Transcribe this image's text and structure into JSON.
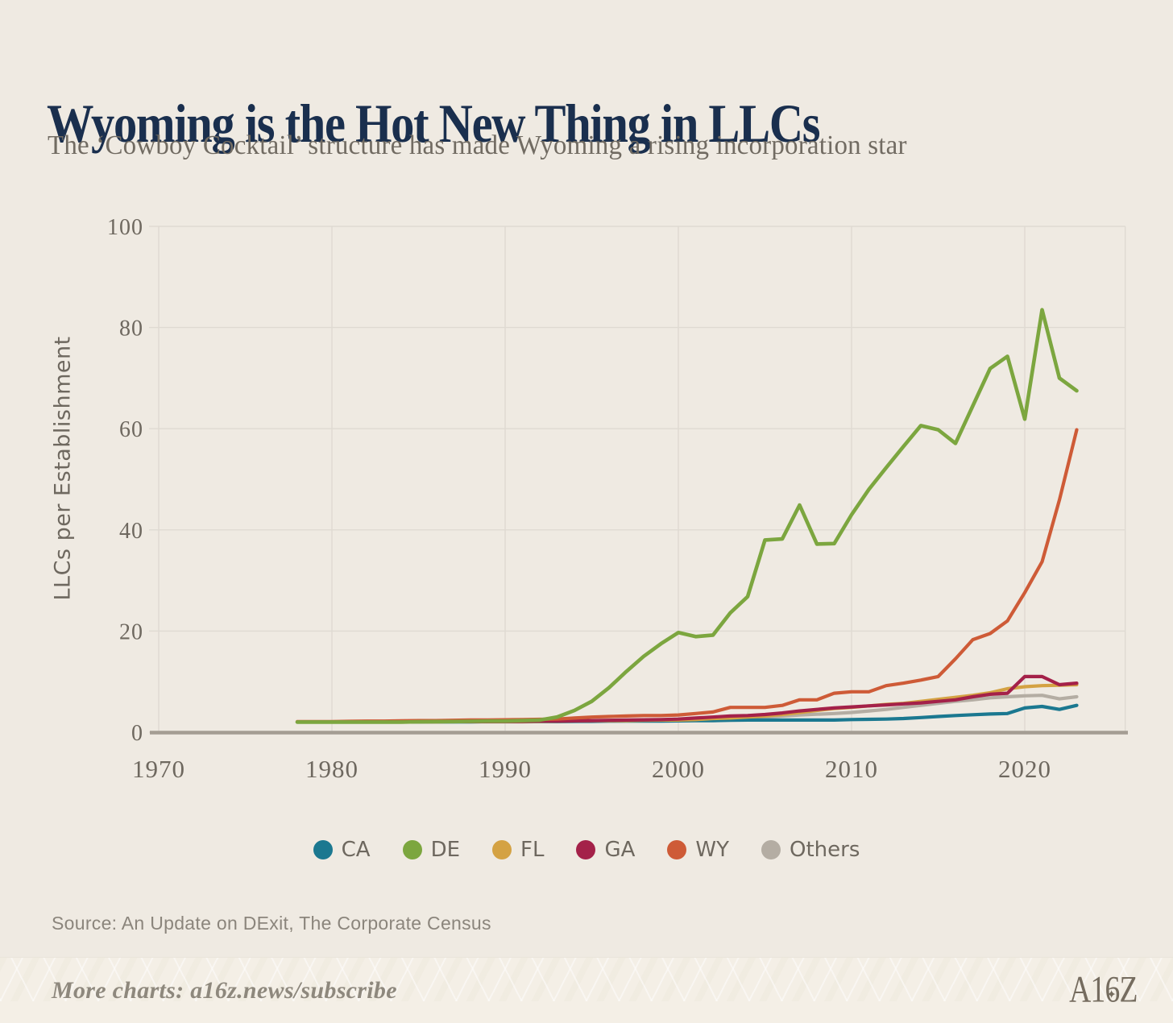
{
  "header": {
    "title": "Wyoming is the Hot New Thing in LLCs",
    "subtitle": "The ‘Cowboy Cocktail’ structure has made Wyoming a rising incorporation star"
  },
  "chart_data": {
    "type": "line",
    "title": "Wyoming is the Hot New Thing in LLCs",
    "subtitle": "The ‘Cowboy Cocktail’ structure has made Wyoming a rising incorporation star",
    "xlabel": "",
    "ylabel": "LLCs per Establishment",
    "x_ticks": [
      1970,
      1980,
      1990,
      2000,
      2010,
      2020
    ],
    "y_ticks": [
      0,
      20,
      40,
      60,
      80,
      100
    ],
    "xlim": [
      1970,
      2025.8
    ],
    "ylim": [
      0,
      100
    ],
    "grid": true,
    "legend_position": "bottom",
    "years": [
      1978,
      1979,
      1980,
      1981,
      1982,
      1983,
      1984,
      1985,
      1986,
      1987,
      1988,
      1989,
      1990,
      1991,
      1992,
      1993,
      1994,
      1995,
      1996,
      1997,
      1998,
      1999,
      2000,
      2001,
      2002,
      2003,
      2004,
      2005,
      2006,
      2007,
      2008,
      2009,
      2010,
      2011,
      2012,
      2013,
      2014,
      2015,
      2016,
      2017,
      2018,
      2019,
      2020,
      2021,
      2022,
      2023
    ],
    "series": [
      {
        "name": "CA",
        "color": "#1B7890",
        "values": [
          2.0,
          2.0,
          2.0,
          2.0,
          2.0,
          2.0,
          2.0,
          2.0,
          2.05,
          2.05,
          2.05,
          2.1,
          2.1,
          2.1,
          2.1,
          2.1,
          2.15,
          2.15,
          2.2,
          2.2,
          2.2,
          2.2,
          2.25,
          2.3,
          2.3,
          2.35,
          2.4,
          2.4,
          2.4,
          2.4,
          2.4,
          2.4,
          2.5,
          2.55,
          2.6,
          2.7,
          2.9,
          3.1,
          3.3,
          3.45,
          3.6,
          3.7,
          4.8,
          5.1,
          4.5,
          5.3
        ]
      },
      {
        "name": "DE",
        "color": "#7CA63F",
        "values": [
          2.0,
          2.0,
          2.0,
          2.0,
          2.0,
          2.0,
          2.0,
          2.05,
          2.1,
          2.1,
          2.15,
          2.2,
          2.2,
          2.3,
          2.4,
          3.0,
          4.3,
          6.1,
          8.8,
          12.0,
          15.0,
          17.5,
          19.7,
          18.9,
          19.2,
          23.6,
          26.8,
          38.0,
          38.2,
          44.9,
          37.2,
          37.3,
          43.0,
          48.0,
          52.3,
          56.5,
          60.6,
          59.8,
          57.1,
          64.5,
          71.9,
          74.3,
          61.9,
          83.5,
          70.0,
          67.5
        ]
      },
      {
        "name": "FL",
        "color": "#D4A243",
        "values": [
          2.0,
          2.0,
          2.0,
          2.0,
          2.0,
          2.0,
          2.05,
          2.05,
          2.05,
          2.1,
          2.1,
          2.1,
          2.1,
          2.1,
          2.15,
          2.2,
          2.25,
          2.3,
          2.3,
          2.3,
          2.35,
          2.4,
          2.4,
          2.5,
          2.7,
          2.8,
          3.0,
          3.2,
          3.5,
          3.9,
          4.3,
          4.7,
          4.9,
          5.2,
          5.5,
          5.7,
          6.1,
          6.5,
          6.9,
          7.3,
          7.8,
          8.6,
          9.0,
          9.2,
          9.3,
          9.4
        ]
      },
      {
        "name": "GA",
        "color": "#A42149",
        "values": [
          2.0,
          2.0,
          2.0,
          2.0,
          2.0,
          2.05,
          2.05,
          2.1,
          2.1,
          2.1,
          2.1,
          2.1,
          2.1,
          2.15,
          2.2,
          2.2,
          2.25,
          2.3,
          2.35,
          2.4,
          2.45,
          2.5,
          2.6,
          2.8,
          3.0,
          3.2,
          3.3,
          3.5,
          3.8,
          4.2,
          4.5,
          4.8,
          5.0,
          5.2,
          5.4,
          5.6,
          5.8,
          6.1,
          6.4,
          7.0,
          7.5,
          7.7,
          11.0,
          11.0,
          9.4,
          9.7
        ]
      },
      {
        "name": "WY",
        "color": "#CE5B37",
        "values": [
          2.1,
          2.1,
          2.1,
          2.15,
          2.2,
          2.2,
          2.25,
          2.3,
          2.3,
          2.35,
          2.4,
          2.4,
          2.45,
          2.5,
          2.55,
          2.6,
          2.8,
          3.0,
          3.1,
          3.2,
          3.3,
          3.3,
          3.4,
          3.7,
          4.0,
          4.9,
          4.9,
          4.9,
          5.3,
          6.4,
          6.4,
          7.7,
          8.0,
          8.0,
          9.2,
          9.7,
          10.3,
          11.0,
          14.5,
          18.3,
          19.5,
          22.0,
          27.6,
          33.7,
          45.9,
          59.8
        ]
      },
      {
        "name": "Others",
        "color": "#B4ADA3",
        "values": [
          2.0,
          2.0,
          2.0,
          2.0,
          2.0,
          2.0,
          2.0,
          2.0,
          2.0,
          2.05,
          2.05,
          2.05,
          2.05,
          2.05,
          2.1,
          2.1,
          2.15,
          2.2,
          2.2,
          2.25,
          2.25,
          2.3,
          2.3,
          2.4,
          2.5,
          2.6,
          2.8,
          3.0,
          3.2,
          3.4,
          3.55,
          3.7,
          3.9,
          4.2,
          4.5,
          4.9,
          5.3,
          5.7,
          6.1,
          6.4,
          6.8,
          7.0,
          7.2,
          7.3,
          6.6,
          7.0
        ]
      }
    ],
    "draw_order": [
      "Others",
      "CA",
      "FL",
      "GA",
      "WY",
      "DE"
    ]
  },
  "source_note": "Source: An Update on DExit, The Corporate Census",
  "footer": {
    "more_charts": "More charts: a16z.news/subscribe",
    "logo": "A16Z",
    "logo_star_icon": "✦"
  },
  "colors": {
    "background": "#EFEAE2",
    "footer_background": "#F4EFE6",
    "grid": "#DFDAD2",
    "baseline": "#A49D93",
    "tick_text": "#6E685F",
    "title": "#1A2F4E",
    "subtitle": "#716B62",
    "source": "#8B857C",
    "footer_text": "#8E887D",
    "logo": "#756C5F"
  }
}
